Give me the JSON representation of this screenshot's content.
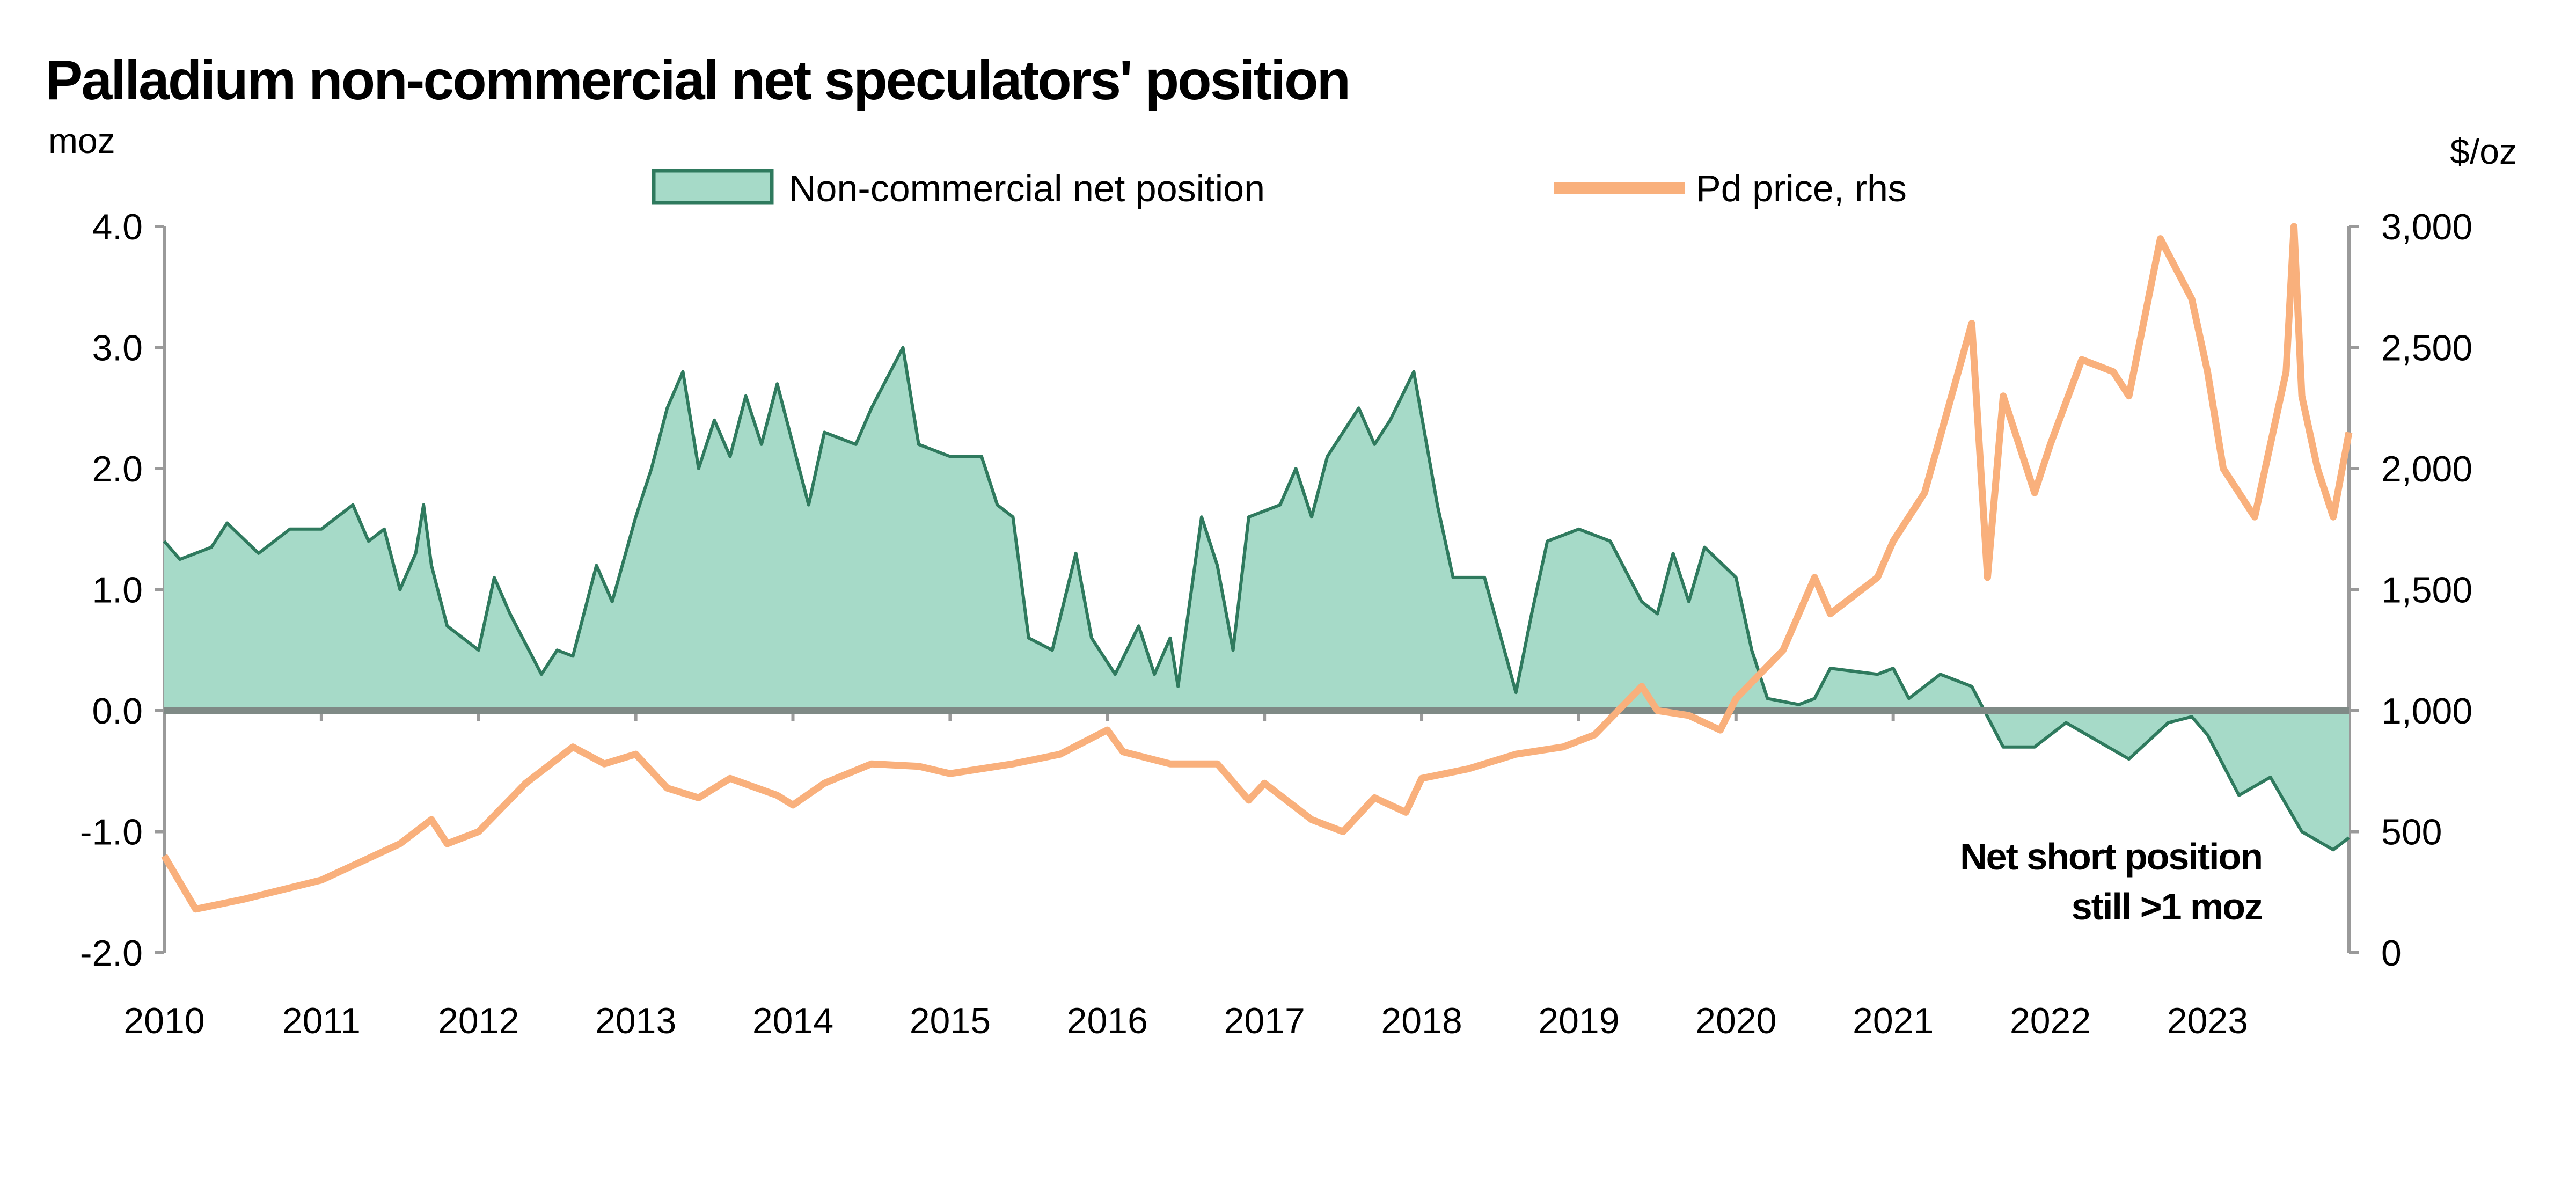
{
  "chart_data": {
    "type": "area+line",
    "title": "Palladium non-commercial net speculators' position",
    "ylabel_left": "moz",
    "ylabel_right": "$/oz",
    "ylim_left": [
      -2.0,
      4.0
    ],
    "ylim_right": [
      0,
      3000
    ],
    "yticks_left": [
      "4.0",
      "3.0",
      "2.0",
      "1.0",
      "0.0",
      "-1.0",
      "-2.0"
    ],
    "yticks_right": [
      "3,000",
      "2,500",
      "2,000",
      "1,500",
      "1,000",
      "500",
      "0"
    ],
    "xticks": [
      "2010",
      "2011",
      "2012",
      "2013",
      "2014",
      "2015",
      "2016",
      "2017",
      "2018",
      "2019",
      "2020",
      "2021",
      "2022",
      "2023"
    ],
    "xlim": [
      2010,
      2023.9
    ],
    "legend": {
      "placement": "top",
      "items": [
        "Non-commercial net position",
        "Pd price, rhs"
      ]
    },
    "annotation": [
      "Net short position",
      "still >1 moz"
    ],
    "colors": {
      "area_fill": "#a6dac8",
      "area_stroke": "#2f7a5e",
      "price": "#f9b07c",
      "zero_line": "#7f8a86"
    },
    "series": [
      {
        "name": "Non-commercial net position",
        "axis": "left",
        "points": [
          [
            2010.0,
            1.4
          ],
          [
            2010.1,
            1.25
          ],
          [
            2010.3,
            1.35
          ],
          [
            2010.4,
            1.55
          ],
          [
            2010.6,
            1.3
          ],
          [
            2010.8,
            1.5
          ],
          [
            2011.0,
            1.5
          ],
          [
            2011.2,
            1.7
          ],
          [
            2011.3,
            1.4
          ],
          [
            2011.4,
            1.5
          ],
          [
            2011.5,
            1.0
          ],
          [
            2011.6,
            1.3
          ],
          [
            2011.65,
            1.7
          ],
          [
            2011.7,
            1.2
          ],
          [
            2011.8,
            0.7
          ],
          [
            2012.0,
            0.5
          ],
          [
            2012.1,
            1.1
          ],
          [
            2012.2,
            0.8
          ],
          [
            2012.4,
            0.3
          ],
          [
            2012.5,
            0.5
          ],
          [
            2012.6,
            0.45
          ],
          [
            2012.75,
            1.2
          ],
          [
            2012.85,
            0.9
          ],
          [
            2013.0,
            1.6
          ],
          [
            2013.1,
            2.0
          ],
          [
            2013.2,
            2.5
          ],
          [
            2013.3,
            2.8
          ],
          [
            2013.4,
            2.0
          ],
          [
            2013.5,
            2.4
          ],
          [
            2013.6,
            2.1
          ],
          [
            2013.7,
            2.6
          ],
          [
            2013.8,
            2.2
          ],
          [
            2013.9,
            2.7
          ],
          [
            2014.0,
            2.2
          ],
          [
            2014.1,
            1.7
          ],
          [
            2014.2,
            2.3
          ],
          [
            2014.4,
            2.2
          ],
          [
            2014.5,
            2.5
          ],
          [
            2014.7,
            3.0
          ],
          [
            2014.8,
            2.2
          ],
          [
            2015.0,
            2.1
          ],
          [
            2015.2,
            2.1
          ],
          [
            2015.3,
            1.7
          ],
          [
            2015.4,
            1.6
          ],
          [
            2015.5,
            0.6
          ],
          [
            2015.65,
            0.5
          ],
          [
            2015.8,
            1.3
          ],
          [
            2015.9,
            0.6
          ],
          [
            2016.05,
            0.3
          ],
          [
            2016.2,
            0.7
          ],
          [
            2016.3,
            0.3
          ],
          [
            2016.4,
            0.6
          ],
          [
            2016.45,
            0.2
          ],
          [
            2016.6,
            1.6
          ],
          [
            2016.7,
            1.2
          ],
          [
            2016.8,
            0.5
          ],
          [
            2016.9,
            1.6
          ],
          [
            2017.1,
            1.7
          ],
          [
            2017.2,
            2.0
          ],
          [
            2017.3,
            1.6
          ],
          [
            2017.4,
            2.1
          ],
          [
            2017.6,
            2.5
          ],
          [
            2017.7,
            2.2
          ],
          [
            2017.8,
            2.4
          ],
          [
            2017.95,
            2.8
          ],
          [
            2018.1,
            1.7
          ],
          [
            2018.2,
            1.1
          ],
          [
            2018.4,
            1.1
          ],
          [
            2018.6,
            0.15
          ],
          [
            2018.7,
            0.8
          ],
          [
            2018.8,
            1.4
          ],
          [
            2019.0,
            1.5
          ],
          [
            2019.2,
            1.4
          ],
          [
            2019.4,
            0.9
          ],
          [
            2019.5,
            0.8
          ],
          [
            2019.6,
            1.3
          ],
          [
            2019.7,
            0.9
          ],
          [
            2019.8,
            1.35
          ],
          [
            2020.0,
            1.1
          ],
          [
            2020.1,
            0.5
          ],
          [
            2020.2,
            0.1
          ],
          [
            2020.4,
            0.05
          ],
          [
            2020.5,
            0.1
          ],
          [
            2020.6,
            0.35
          ],
          [
            2020.9,
            0.3
          ],
          [
            2021.0,
            0.35
          ],
          [
            2021.1,
            0.1
          ],
          [
            2021.3,
            0.3
          ],
          [
            2021.5,
            0.2
          ],
          [
            2021.7,
            -0.3
          ],
          [
            2021.9,
            -0.3
          ],
          [
            2022.1,
            -0.1
          ],
          [
            2022.3,
            -0.25
          ],
          [
            2022.5,
            -0.4
          ],
          [
            2022.75,
            -0.1
          ],
          [
            2022.9,
            -0.05
          ],
          [
            2023.0,
            -0.2
          ],
          [
            2023.2,
            -0.7
          ],
          [
            2023.4,
            -0.55
          ],
          [
            2023.6,
            -1.0
          ],
          [
            2023.8,
            -1.15
          ],
          [
            2023.9,
            -1.05
          ]
        ]
      },
      {
        "name": "Pd price, rhs",
        "axis": "right",
        "points": [
          [
            2010.0,
            400
          ],
          [
            2010.2,
            180
          ],
          [
            2010.5,
            220
          ],
          [
            2011.0,
            300
          ],
          [
            2011.5,
            450
          ],
          [
            2011.7,
            550
          ],
          [
            2011.8,
            450
          ],
          [
            2012.0,
            500
          ],
          [
            2012.3,
            700
          ],
          [
            2012.6,
            850
          ],
          [
            2012.8,
            780
          ],
          [
            2013.0,
            820
          ],
          [
            2013.2,
            680
          ],
          [
            2013.4,
            640
          ],
          [
            2013.6,
            720
          ],
          [
            2013.9,
            650
          ],
          [
            2014.0,
            610
          ],
          [
            2014.2,
            700
          ],
          [
            2014.5,
            780
          ],
          [
            2014.8,
            770
          ],
          [
            2015.0,
            740
          ],
          [
            2015.4,
            780
          ],
          [
            2015.7,
            820
          ],
          [
            2016.0,
            920
          ],
          [
            2016.1,
            830
          ],
          [
            2016.4,
            780
          ],
          [
            2016.7,
            780
          ],
          [
            2016.9,
            630
          ],
          [
            2017.0,
            700
          ],
          [
            2017.3,
            550
          ],
          [
            2017.5,
            500
          ],
          [
            2017.7,
            640
          ],
          [
            2017.9,
            580
          ],
          [
            2018.0,
            720
          ],
          [
            2018.3,
            760
          ],
          [
            2018.6,
            820
          ],
          [
            2018.9,
            850
          ],
          [
            2019.1,
            900
          ],
          [
            2019.4,
            1100
          ],
          [
            2019.5,
            1000
          ],
          [
            2019.7,
            980
          ],
          [
            2019.9,
            920
          ],
          [
            2020.0,
            1050
          ],
          [
            2020.3,
            1250
          ],
          [
            2020.5,
            1550
          ],
          [
            2020.6,
            1400
          ],
          [
            2020.9,
            1550
          ],
          [
            2021.0,
            1700
          ],
          [
            2021.2,
            1900
          ],
          [
            2021.5,
            2600
          ],
          [
            2021.6,
            1550
          ],
          [
            2021.7,
            2300
          ],
          [
            2021.9,
            1900
          ],
          [
            2022.0,
            2100
          ],
          [
            2022.2,
            2450
          ],
          [
            2022.4,
            2400
          ],
          [
            2022.5,
            2300
          ],
          [
            2022.7,
            2950
          ],
          [
            2022.9,
            2700
          ],
          [
            2023.0,
            2400
          ],
          [
            2023.1,
            2000
          ],
          [
            2023.3,
            1800
          ],
          [
            2023.5,
            2400
          ],
          [
            2023.55,
            3000
          ],
          [
            2023.6,
            2300
          ],
          [
            2023.7,
            2000
          ],
          [
            2023.8,
            1800
          ],
          [
            2023.9,
            2150
          ]
        ]
      }
    ]
  }
}
